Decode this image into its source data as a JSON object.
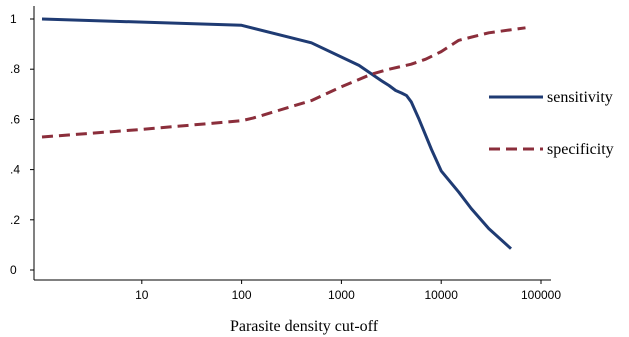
{
  "chart_data": {
    "type": "line",
    "title": "",
    "xlabel": "Parasite density cut-off",
    "ylabel": "",
    "x_scale": "log",
    "xlim": [
      1,
      100000
    ],
    "ylim": [
      0,
      1
    ],
    "x_ticks": [
      10,
      100,
      1000,
      10000,
      100000
    ],
    "x_tick_labels": [
      "10",
      "100",
      "1000",
      "10000",
      "100000"
    ],
    "y_ticks": [
      0,
      0.2,
      0.4,
      0.6,
      0.8,
      1
    ],
    "y_tick_labels": [
      "0",
      ".2",
      ".4",
      ".6",
      ".8",
      "1"
    ],
    "grid": false,
    "legend": {
      "position": "right"
    },
    "series": [
      {
        "name": "sensitivity",
        "color": "#1f3b73",
        "dash": "solid",
        "points": [
          [
            1,
            1.0
          ],
          [
            100,
            0.975
          ],
          [
            500,
            0.905
          ],
          [
            1500,
            0.815
          ],
          [
            2500,
            0.755
          ],
          [
            3000,
            0.735
          ],
          [
            3500,
            0.715
          ],
          [
            4000,
            0.705
          ],
          [
            4500,
            0.695
          ],
          [
            5000,
            0.67
          ],
          [
            6000,
            0.6
          ],
          [
            8000,
            0.48
          ],
          [
            10000,
            0.395
          ],
          [
            15000,
            0.31
          ],
          [
            20000,
            0.245
          ],
          [
            30000,
            0.165
          ],
          [
            50000,
            0.085
          ]
        ]
      },
      {
        "name": "specificity",
        "color": "#8b2e3b",
        "dash": "dashed",
        "points": [
          [
            1,
            0.53
          ],
          [
            10,
            0.56
          ],
          [
            100,
            0.595
          ],
          [
            130,
            0.605
          ],
          [
            500,
            0.675
          ],
          [
            1000,
            0.73
          ],
          [
            2000,
            0.78
          ],
          [
            3000,
            0.8
          ],
          [
            5000,
            0.82
          ],
          [
            7000,
            0.84
          ],
          [
            10000,
            0.87
          ],
          [
            15000,
            0.915
          ],
          [
            30000,
            0.945
          ],
          [
            70000,
            0.965
          ]
        ]
      }
    ]
  }
}
